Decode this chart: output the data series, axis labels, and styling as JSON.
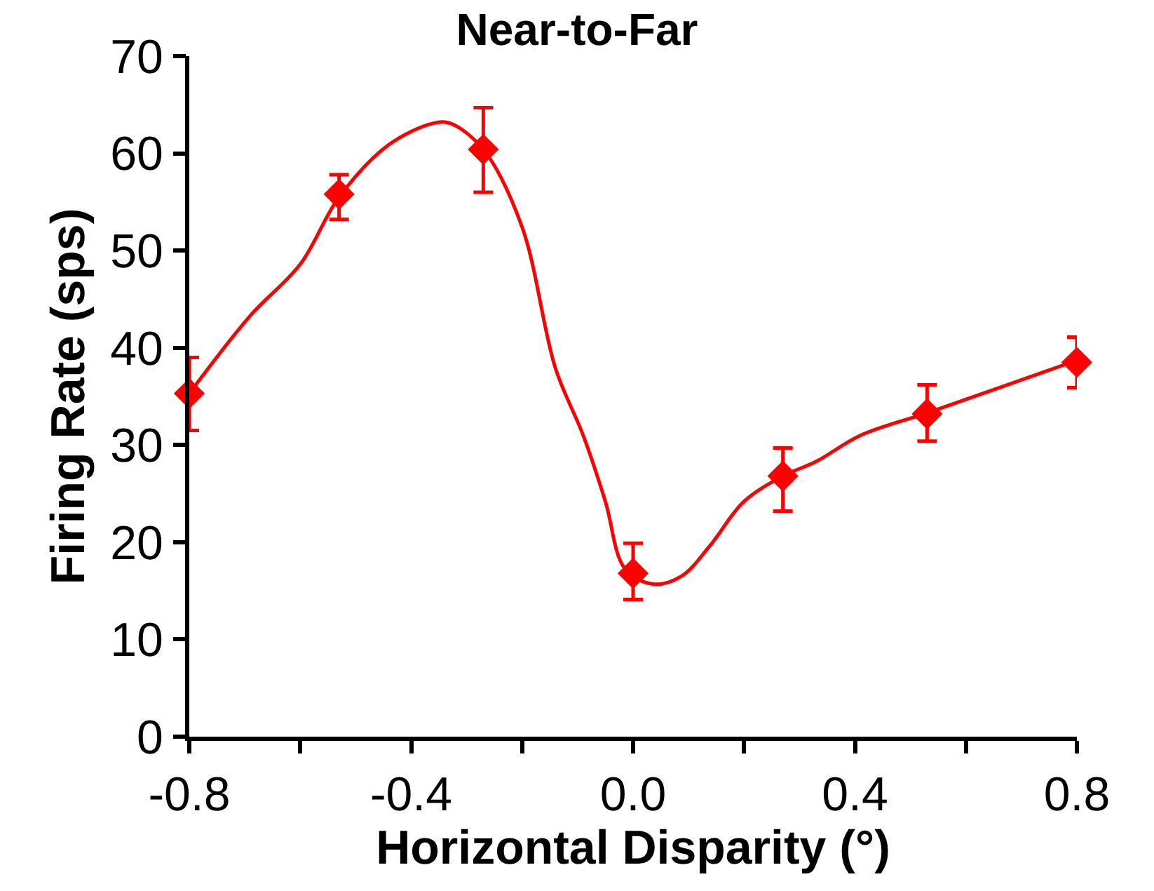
{
  "chart_data": {
    "type": "scatter",
    "title": "Near-to-Far",
    "xlabel": "Horizontal Disparity (°)",
    "ylabel": "Firing Rate (sps)",
    "xlim": [
      -0.8,
      0.8
    ],
    "xticks": [
      {
        "value": -0.8,
        "label": "-0.8"
      },
      {
        "value": -0.6,
        "label": null
      },
      {
        "value": -0.4,
        "label": "-0.4"
      },
      {
        "value": -0.2,
        "label": null
      },
      {
        "value": 0,
        "label": "0.0"
      },
      {
        "value": 0.2,
        "label": null
      },
      {
        "value": 0.4,
        "label": "0.4"
      },
      {
        "value": 0.6,
        "label": null
      },
      {
        "value": 0.8,
        "label": "0.8"
      }
    ],
    "ylim": [
      0,
      70
    ],
    "yticks": [
      0,
      10,
      20,
      30,
      40,
      50,
      60,
      70
    ],
    "legend": false,
    "series": [
      {
        "type": "line",
        "color": "#ff0000",
        "marker": "none",
        "line_style": "solid",
        "x": [
          -0.8,
          -0.69,
          -0.6,
          -0.53,
          -0.44,
          -0.36,
          -0.33,
          -0.27,
          -0.2,
          -0.14,
          -0.09,
          -0.05,
          -0.015,
          0.036,
          0.087,
          0.138,
          0.2,
          0.27,
          0.33,
          0.41,
          0.53,
          0.66,
          0.8
        ],
        "values": [
          35.3,
          43.3,
          48.6,
          55.5,
          60.9,
          63.1,
          63.1,
          60.4,
          52.4,
          37.9,
          31,
          24.2,
          17.3,
          15.7,
          16.5,
          19.6,
          24.2,
          26.8,
          28.3,
          31,
          33.3,
          35.9,
          38.7
        ]
      },
      {
        "color": "#ff0000",
        "marker": "diamond",
        "x": [
          -0.8,
          -0.53,
          -0.27,
          0,
          0.27,
          0.53,
          0.8
        ],
        "values": [
          35.3,
          55.8,
          60.4,
          16.8,
          26.8,
          33.2,
          38.5
        ],
        "errors": [
          [
            31.5,
            39
          ],
          [
            53.2,
            57.8
          ],
          [
            56,
            64.7
          ],
          [
            14.1,
            19.9
          ],
          [
            23.2,
            29.7
          ],
          [
            30.4,
            36.2
          ],
          [
            35.9,
            41.1
          ]
        ]
      }
    ]
  }
}
